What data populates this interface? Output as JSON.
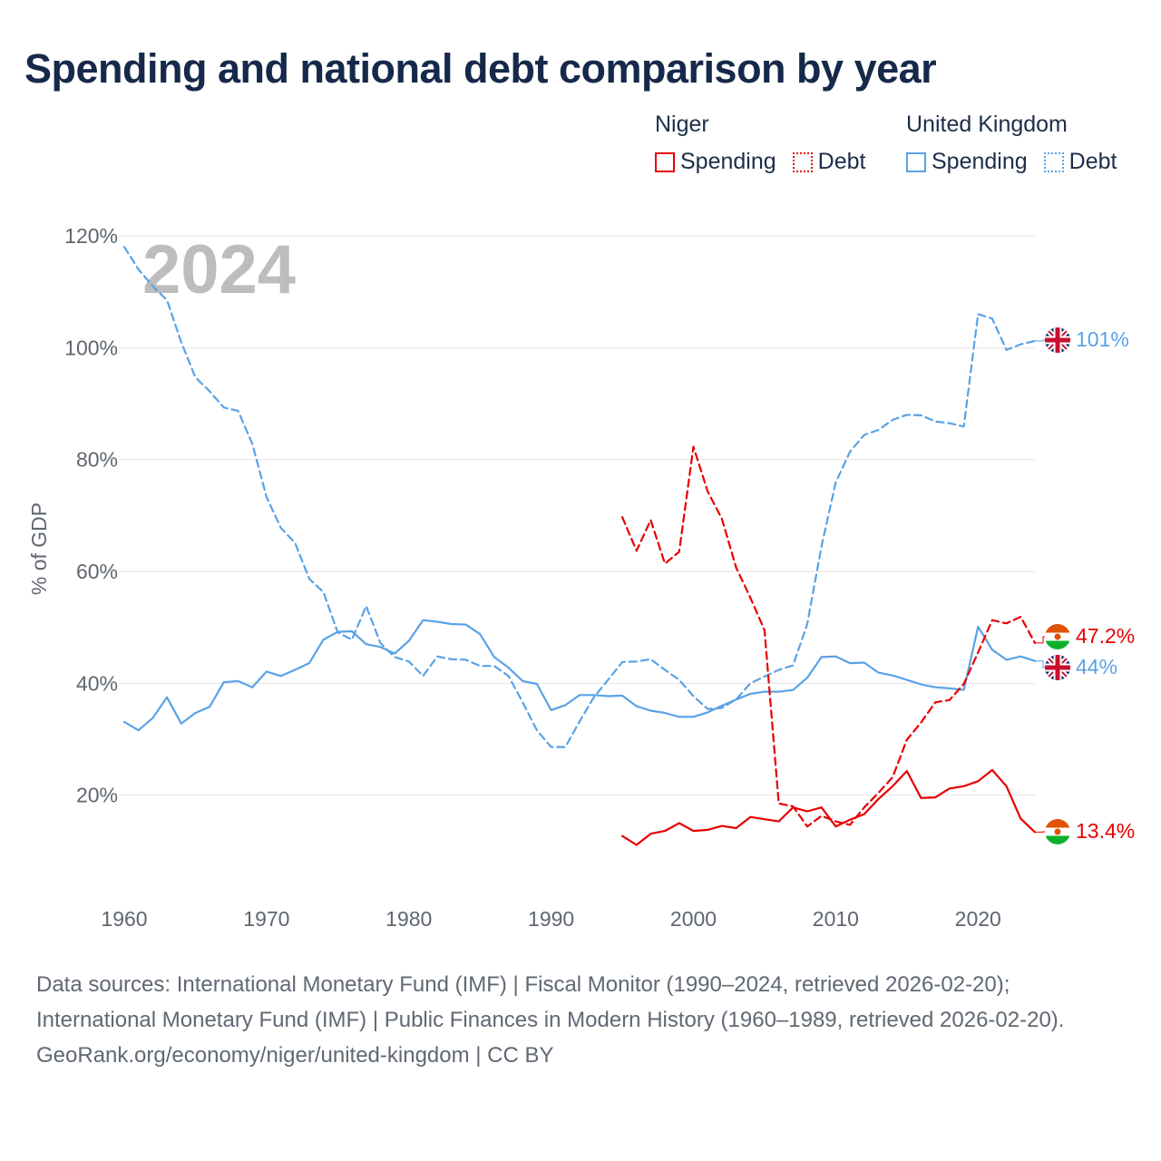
{
  "title": "Spending and national debt comparison by year",
  "legend": {
    "niger": {
      "name": "Niger",
      "spending": "Spending",
      "debt": "Debt",
      "color": "#e60000"
    },
    "uk": {
      "name": "United Kingdom",
      "spending": "Spending",
      "debt": "Debt",
      "color": "#5aa2e6"
    }
  },
  "year_label": "2024",
  "end_labels": {
    "uk_debt": "101%",
    "niger_debt": "47.2%",
    "uk_spending": "44%",
    "niger_spending": "13.4%"
  },
  "footer": {
    "sources": "Data sources: International Monetary Fund (IMF) | Fiscal Monitor (1990–2024, retrieved 2026-02-20); International Monetary Fund (IMF) | Public Finances in Modern History (1960–1989, retrieved 2026-02-20).",
    "credit": "GeoRank.org/economy/niger/united-kingdom | CC BY"
  },
  "chart_data": {
    "type": "line",
    "title": "Spending and national debt comparison by year",
    "xlabel": "",
    "ylabel": "% of GDP",
    "xlim": [
      1960,
      2024
    ],
    "ylim": [
      0,
      120
    ],
    "xticks": [
      1960,
      1970,
      1980,
      1990,
      2000,
      2010,
      2020
    ],
    "yticks": [
      20,
      40,
      60,
      80,
      100,
      120
    ],
    "ytick_labels": [
      "20%",
      "40%",
      "60%",
      "80%",
      "100%",
      "120%"
    ],
    "grid": true,
    "legend_position": "top-right",
    "series": [
      {
        "name": "United Kingdom Debt",
        "country": "United Kingdom",
        "measure": "Debt",
        "color": "#5aa2e6",
        "dashed": true,
        "x": [
          1960,
          1961,
          1962,
          1963,
          1964,
          1965,
          1966,
          1967,
          1968,
          1969,
          1970,
          1971,
          1972,
          1973,
          1974,
          1975,
          1976,
          1977,
          1978,
          1979,
          1980,
          1981,
          1982,
          1983,
          1984,
          1985,
          1986,
          1987,
          1988,
          1989,
          1990,
          1991,
          1992,
          1993,
          1994,
          1995,
          1996,
          1997,
          1998,
          1999,
          2000,
          2001,
          2002,
          2003,
          2004,
          2005,
          2006,
          2007,
          2008,
          2009,
          2010,
          2011,
          2012,
          2013,
          2014,
          2015,
          2016,
          2017,
          2018,
          2019,
          2020,
          2021,
          2022,
          2023,
          2024
        ],
        "values": [
          118,
          114,
          111,
          108.5,
          101,
          94.7,
          92.2,
          89.3,
          88.7,
          82.8,
          73.3,
          67.8,
          65.1,
          58.7,
          56.3,
          49.1,
          47.8,
          53.8,
          47.2,
          44.7,
          43.9,
          41.3,
          44.8,
          44.3,
          44.2,
          43.1,
          43.1,
          41.3,
          36.6,
          31.6,
          28.6,
          28.6,
          33.2,
          37.5,
          40.6,
          43.8,
          43.9,
          44.3,
          42.4,
          40.6,
          37.7,
          35.4,
          35.6,
          37.1,
          40,
          41.2,
          42.4,
          43.2,
          50.6,
          64.5,
          75.9,
          81.4,
          84.4,
          85.3,
          87.1,
          88,
          87.9,
          86.8,
          86.5,
          85.9,
          106,
          105.2,
          99.6,
          100.6,
          101.2
        ]
      },
      {
        "name": "United Kingdom Spending",
        "country": "United Kingdom",
        "measure": "Spending",
        "color": "#5aa2e6",
        "dashed": false,
        "x": [
          1960,
          1961,
          1962,
          1963,
          1964,
          1965,
          1966,
          1967,
          1968,
          1969,
          1970,
          1971,
          1972,
          1973,
          1974,
          1975,
          1976,
          1977,
          1978,
          1979,
          1980,
          1981,
          1982,
          1983,
          1984,
          1985,
          1986,
          1987,
          1988,
          1989,
          1990,
          1991,
          1992,
          1993,
          1994,
          1995,
          1996,
          1997,
          1998,
          1999,
          2000,
          2001,
          2002,
          2003,
          2004,
          2005,
          2006,
          2007,
          2008,
          2009,
          2010,
          2011,
          2012,
          2013,
          2014,
          2015,
          2016,
          2017,
          2018,
          2019,
          2020,
          2021,
          2022,
          2023,
          2024
        ],
        "values": [
          33.1,
          31.6,
          33.8,
          37.5,
          32.8,
          34.7,
          35.8,
          40.2,
          40.4,
          39.3,
          42.1,
          41.3,
          42.4,
          43.6,
          47.8,
          49.2,
          49.3,
          47,
          46.5,
          45.3,
          47.6,
          51.3,
          51,
          50.6,
          50.5,
          48.8,
          44.7,
          42.8,
          40.4,
          39.9,
          35.2,
          36.1,
          37.9,
          37.9,
          37.7,
          37.8,
          35.9,
          35.1,
          34.7,
          34,
          34,
          34.8,
          36,
          37.1,
          38.1,
          38.5,
          38.5,
          38.8,
          41,
          44.7,
          44.8,
          43.6,
          43.7,
          41.9,
          41.4,
          40.6,
          39.8,
          39.3,
          39.1,
          38.8,
          50.1,
          46,
          44.2,
          44.8,
          44
        ]
      },
      {
        "name": "Niger Debt",
        "country": "Niger",
        "measure": "Debt",
        "color": "#e60000",
        "dashed": true,
        "x": [
          1995,
          1996,
          1997,
          1998,
          1999,
          2000,
          2001,
          2002,
          2003,
          2004,
          2005,
          2006,
          2007,
          2008,
          2009,
          2010,
          2011,
          2012,
          2013,
          2014,
          2015,
          2016,
          2017,
          2018,
          2019,
          2020,
          2021,
          2022,
          2023,
          2024
        ],
        "values": [
          69.7,
          63.7,
          69.2,
          61.4,
          63.5,
          82.3,
          74.3,
          69.4,
          60.7,
          55.3,
          49.5,
          18.5,
          18,
          14.4,
          16.3,
          15.3,
          14.7,
          17.8,
          20.4,
          23.2,
          29.9,
          33,
          36.6,
          37,
          39.9,
          45.5,
          51.3,
          50.7,
          51.9,
          47.2
        ]
      },
      {
        "name": "Niger Spending",
        "country": "Niger",
        "measure": "Spending",
        "color": "#e60000",
        "dashed": false,
        "x": [
          1995,
          1996,
          1997,
          1998,
          1999,
          2000,
          2001,
          2002,
          2003,
          2004,
          2005,
          2006,
          2007,
          2008,
          2009,
          2010,
          2011,
          2012,
          2013,
          2014,
          2015,
          2016,
          2017,
          2018,
          2019,
          2020,
          2021,
          2022,
          2023,
          2024
        ],
        "values": [
          12.7,
          11.1,
          13.1,
          13.6,
          15,
          13.6,
          13.8,
          14.5,
          14.1,
          16.1,
          15.7,
          15.3,
          17.8,
          17.1,
          17.8,
          14.4,
          15.6,
          16.6,
          19.3,
          21.6,
          24.3,
          19.5,
          19.6,
          21.2,
          21.6,
          22.5,
          24.5,
          21.6,
          15.8,
          13.4
        ]
      }
    ]
  }
}
